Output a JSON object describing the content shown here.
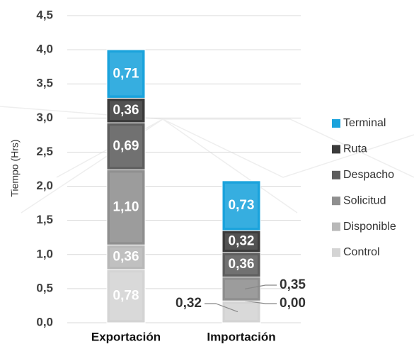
{
  "chart_data": {
    "type": "stacked_bar",
    "y_label": "Tiempo (Hrs)",
    "categories": [
      "Exportación",
      "Importación"
    ],
    "series": [
      {
        "name": "Control",
        "color": "#d4d4d4",
        "values": [
          0.78,
          0.32
        ],
        "value_labels": [
          "0,78",
          "0,32"
        ]
      },
      {
        "name": "Disponible",
        "color": "#b8b8b8",
        "values": [
          0.36,
          0.0
        ],
        "value_labels": [
          "0,36",
          "0,00"
        ]
      },
      {
        "name": "Solicitud",
        "color": "#8f8f8f",
        "values": [
          1.1,
          0.35
        ],
        "value_labels": [
          "1,10",
          "0,35"
        ]
      },
      {
        "name": "Despacho",
        "color": "#5e5e5e",
        "values": [
          0.69,
          0.36
        ],
        "value_labels": [
          "0,69",
          "0,36"
        ]
      },
      {
        "name": "Ruta",
        "color": "#3b3b3b",
        "values": [
          0.36,
          0.32
        ],
        "value_labels": [
          "0,36",
          "0,32"
        ]
      },
      {
        "name": "Terminal",
        "color": "#1ba3dc",
        "values": [
          0.71,
          0.73
        ],
        "value_labels": [
          "0,71",
          "0,73"
        ]
      }
    ],
    "ylim": [
      0,
      4.5
    ],
    "yticks": [
      {
        "value": 0,
        "label": "0,0"
      },
      {
        "value": 0.5,
        "label": "0,5"
      },
      {
        "value": 1,
        "label": "1,0"
      },
      {
        "value": 1.5,
        "label": "1,5"
      },
      {
        "value": 2,
        "label": "2,0"
      },
      {
        "value": 2.5,
        "label": "2,5"
      },
      {
        "value": 3,
        "label": "3,0"
      },
      {
        "value": 3.5,
        "label": "3,5"
      },
      {
        "value": 4,
        "label": "4,0"
      },
      {
        "value": 4.5,
        "label": "4,5"
      }
    ],
    "grid": true,
    "legend": "right"
  }
}
